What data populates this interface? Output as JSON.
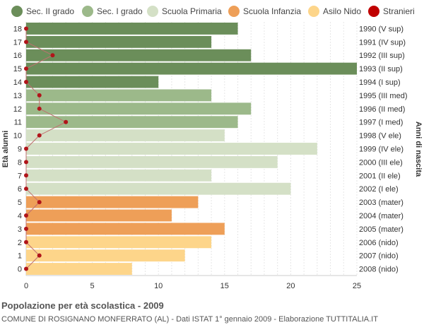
{
  "chart_data": {
    "type": "bar",
    "orientation": "horizontal",
    "categories": [
      "0",
      "1",
      "2",
      "3",
      "4",
      "5",
      "6",
      "7",
      "8",
      "9",
      "10",
      "11",
      "12",
      "13",
      "14",
      "15",
      "16",
      "17",
      "18"
    ],
    "values": [
      8,
      12,
      14,
      15,
      11,
      13,
      20,
      14,
      19,
      22,
      15,
      16,
      17,
      14,
      10,
      25,
      17,
      14,
      16
    ],
    "group": [
      "nido",
      "nido",
      "nido",
      "infanzia",
      "infanzia",
      "infanzia",
      "primaria",
      "primaria",
      "primaria",
      "primaria",
      "primaria",
      "sec1",
      "sec1",
      "sec1",
      "sec2",
      "sec2",
      "sec2",
      "sec2",
      "sec2"
    ],
    "stranieri": [
      0,
      1,
      0,
      0,
      0,
      1,
      0,
      0,
      0,
      0,
      1,
      3,
      1,
      1,
      0,
      0,
      2,
      0,
      0
    ],
    "birth_years": [
      "2008 (nido)",
      "2007 (nido)",
      "2006 (nido)",
      "2005 (mater)",
      "2004 (mater)",
      "2003 (mater)",
      "2002 (I ele)",
      "2001 (II ele)",
      "2000 (III ele)",
      "1999 (IV ele)",
      "1998 (V ele)",
      "1997 (I med)",
      "1996 (II med)",
      "1995 (III med)",
      "1994 (I sup)",
      "1993 (II sup)",
      "1992 (III sup)",
      "1991 (IV sup)",
      "1990 (V sup)"
    ],
    "xlim": [
      0,
      25
    ],
    "xticks": [
      0,
      5,
      10,
      15,
      20,
      25
    ],
    "ylabel_left": "Età alunni",
    "ylabel_right": "Anni di nascita",
    "grid": true,
    "legend_position": "top",
    "legend": [
      {
        "key": "sec2",
        "label": "Sec. II grado",
        "color": "#6b8e5a"
      },
      {
        "key": "sec1",
        "label": "Sec. I grado",
        "color": "#9cb98a"
      },
      {
        "key": "primaria",
        "label": "Scuola Primaria",
        "color": "#d4e0c6"
      },
      {
        "key": "infanzia",
        "label": "Scuola Infanzia",
        "color": "#ee9f58"
      },
      {
        "key": "nido",
        "label": "Asilo Nido",
        "color": "#fdd58a"
      },
      {
        "key": "stranieri",
        "label": "Stranieri",
        "color": "#c00000"
      }
    ]
  },
  "footer": {
    "title": "Popolazione per età scolastica - 2009",
    "subtitle": "COMUNE DI ROSIGNANO MONFERRATO (AL) - Dati ISTAT 1° gennaio 2009 - Elaborazione TUTTITALIA.IT"
  }
}
